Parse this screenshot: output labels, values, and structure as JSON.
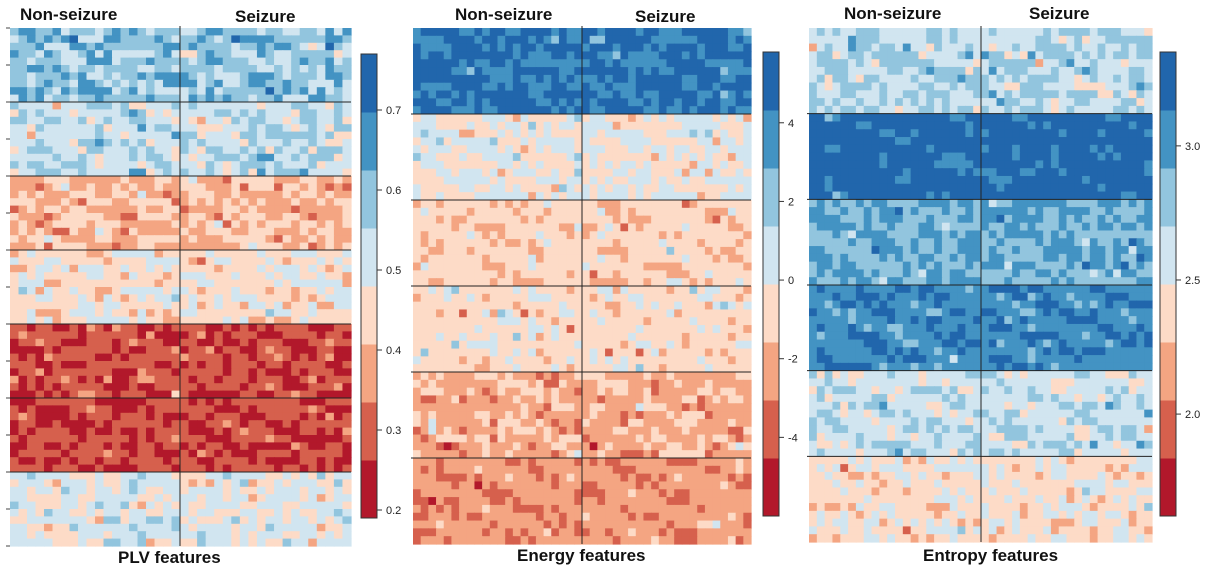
{
  "palette": [
    "#b2182b",
    "#d6604d",
    "#f4a582",
    "#fddbc7",
    "#d1e5f0",
    "#92c5de",
    "#4393c3",
    "#2166ac"
  ],
  "chart_data": [
    {
      "type": "heatmap",
      "title": "PLV features",
      "columns": [
        "Non-seizure",
        "Seizure"
      ],
      "colorbar": {
        "ticks": [
          "0.2",
          "0.3",
          "0.4",
          "0.5",
          "0.6",
          "0.7"
        ],
        "tick_values": [
          0.2,
          0.3,
          0.4,
          0.5,
          0.6,
          0.7
        ],
        "range": [
          0.19,
          0.77
        ]
      },
      "row_groups": 7,
      "group_levels": [
        5.0,
        4.2,
        2.4,
        3.2,
        0.7,
        0.6,
        3.7
      ],
      "group_spread": [
        1.0,
        0.8,
        0.8,
        0.8,
        0.7,
        0.7,
        0.8
      ]
    },
    {
      "type": "heatmap",
      "title": "Energy features",
      "columns": [
        "Non-seizure",
        "Seizure"
      ],
      "colorbar": {
        "ticks": [
          "-4",
          "-2",
          "0",
          "2",
          "4"
        ],
        "tick_values": [
          -4,
          -2,
          0,
          2,
          4
        ],
        "range": [
          -6.0,
          5.8
        ]
      },
      "row_groups": 6,
      "group_levels": [
        6.6,
        3.5,
        2.8,
        3.1,
        2.2,
        1.8
      ],
      "group_spread": [
        0.6,
        0.6,
        0.5,
        0.5,
        0.7,
        0.5
      ]
    },
    {
      "type": "heatmap",
      "title": "Entropy features",
      "columns": [
        "Non-seizure",
        "Seizure"
      ],
      "colorbar": {
        "ticks": [
          "2.0",
          "2.5",
          "3.0"
        ],
        "tick_values": [
          2.0,
          2.5,
          3.0
        ],
        "range": [
          1.62,
          3.35
        ]
      },
      "row_groups": 6,
      "group_levels": [
        4.4,
        7.0,
        5.5,
        6.2,
        4.1,
        3.2
      ],
      "group_spread": [
        0.8,
        0.5,
        0.6,
        0.6,
        0.7,
        0.7
      ]
    }
  ]
}
